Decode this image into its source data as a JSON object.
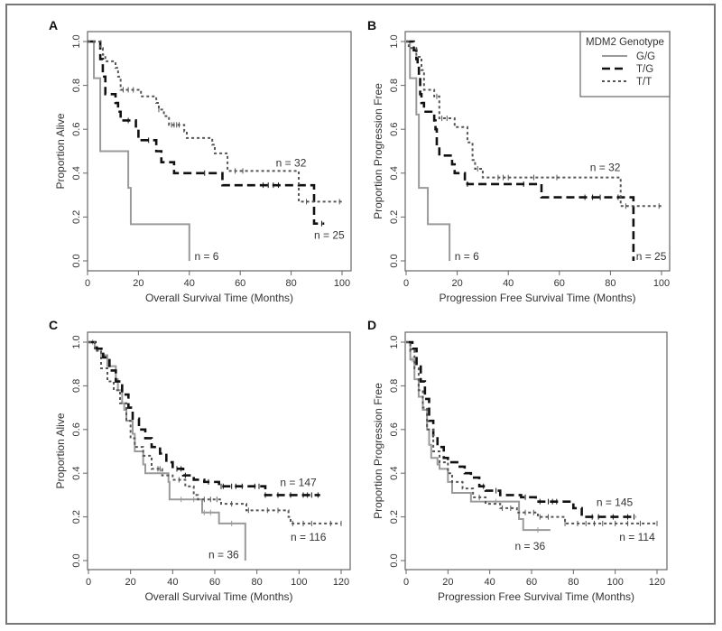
{
  "chart_data": [
    {
      "panel": "A",
      "type": "line",
      "xlabel": "Overall Survival Time (Months)",
      "ylabel": "Proportion Alive",
      "xlim": [
        0,
        100
      ],
      "ylim": [
        0,
        1
      ],
      "xticks": [
        "0",
        "20",
        "40",
        "60",
        "80",
        "100"
      ],
      "xtick_values": [
        0,
        20,
        40,
        60,
        80,
        100
      ],
      "yticks": [
        "0.0",
        "0.2",
        "0.4",
        "0.6",
        "0.8",
        "1.0"
      ],
      "ytick_values": [
        0,
        0.2,
        0.4,
        0.6,
        0.8,
        1.0
      ],
      "series": [
        {
          "name": "G/G",
          "steps": [
            [
              0,
              1
            ],
            [
              2.5,
              0.833
            ],
            [
              5,
              0.5
            ],
            [
              16,
              0.333
            ],
            [
              17,
              0.167
            ],
            [
              40,
              0
            ]
          ],
          "end": 40,
          "censor": []
        },
        {
          "name": "T/G",
          "steps": [
            [
              0,
              1
            ],
            [
              5,
              0.92
            ],
            [
              6,
              0.84
            ],
            [
              7,
              0.76
            ],
            [
              11,
              0.72
            ],
            [
              12,
              0.68
            ],
            [
              13,
              0.64
            ],
            [
              19,
              0.6
            ],
            [
              20,
              0.55
            ],
            [
              27,
              0.5
            ],
            [
              29,
              0.45
            ],
            [
              34,
              0.4
            ],
            [
              53,
              0.345
            ],
            [
              89,
              0.17
            ]
          ],
          "end": 93,
          "censor": [
            16,
            24,
            46,
            69,
            71,
            73,
            75,
            92
          ]
        },
        {
          "name": "T/T",
          "steps": [
            [
              0,
              1
            ],
            [
              5,
              0.97
            ],
            [
              6,
              0.94
            ],
            [
              7,
              0.91
            ],
            [
              11,
              0.88
            ],
            [
              12,
              0.84
            ],
            [
              13,
              0.78
            ],
            [
              21,
              0.75
            ],
            [
              27,
              0.72
            ],
            [
              28,
              0.69
            ],
            [
              30,
              0.66
            ],
            [
              32,
              0.62
            ],
            [
              38,
              0.59
            ],
            [
              39,
              0.56
            ],
            [
              49,
              0.53
            ],
            [
              50,
              0.49
            ],
            [
              55,
              0.41
            ],
            [
              83,
              0.27
            ]
          ],
          "end": 100,
          "censor": [
            14,
            16,
            18,
            28,
            33,
            34,
            35,
            36,
            58,
            61,
            86,
            99
          ]
        }
      ],
      "annotations": [
        {
          "text": "n = 32",
          "x": 74,
          "y": 0.43
        },
        {
          "text": "n = 25",
          "x": 89,
          "y": 0.1
        },
        {
          "text": "n = 6",
          "x": 42,
          "y": 0.005
        }
      ]
    },
    {
      "panel": "B",
      "type": "line",
      "xlabel": "Progression Free Survival Time (Months)",
      "ylabel": "Proportion Progression Free",
      "xlim": [
        0,
        100
      ],
      "ylim": [
        0,
        1
      ],
      "xticks": [
        "0",
        "20",
        "40",
        "60",
        "80",
        "100"
      ],
      "xtick_values": [
        0,
        20,
        40,
        60,
        80,
        100
      ],
      "yticks": [
        "0.0",
        "0.2",
        "0.4",
        "0.6",
        "0.8",
        "1.0"
      ],
      "ytick_values": [
        0,
        0.2,
        0.4,
        0.6,
        0.8,
        1.0
      ],
      "legend": {
        "title": "MDM2 Genotype",
        "entries": [
          "G/G",
          "T/G",
          "T/T"
        ],
        "placement": "top-right"
      },
      "series": [
        {
          "name": "G/G",
          "steps": [
            [
              0,
              1
            ],
            [
              1.5,
              0.833
            ],
            [
              4,
              0.667
            ],
            [
              5,
              0.333
            ],
            [
              8.5,
              0.167
            ],
            [
              17,
              0
            ]
          ],
          "end": 17,
          "censor": []
        },
        {
          "name": "T/G",
          "steps": [
            [
              0,
              1
            ],
            [
              3,
              0.96
            ],
            [
              4,
              0.92
            ],
            [
              4.5,
              0.88
            ],
            [
              5,
              0.84
            ],
            [
              5.5,
              0.76
            ],
            [
              6,
              0.72
            ],
            [
              7,
              0.68
            ],
            [
              11,
              0.64
            ],
            [
              11.5,
              0.6
            ],
            [
              12,
              0.52
            ],
            [
              13,
              0.48
            ],
            [
              18,
              0.44
            ],
            [
              19,
              0.4
            ],
            [
              23,
              0.36
            ],
            [
              24,
              0.35
            ],
            [
              53,
              0.29
            ],
            [
              89,
              0
            ]
          ],
          "end": 89,
          "censor": [
            24,
            46,
            70,
            73,
            76,
            83
          ]
        },
        {
          "name": "T/T",
          "steps": [
            [
              0,
              1
            ],
            [
              1,
              0.97
            ],
            [
              4,
              0.93
            ],
            [
              6,
              0.87
            ],
            [
              7,
              0.78
            ],
            [
              11,
              0.75
            ],
            [
              13,
              0.65
            ],
            [
              19,
              0.61
            ],
            [
              24,
              0.54
            ],
            [
              26,
              0.46
            ],
            [
              27,
              0.42
            ],
            [
              30,
              0.38
            ],
            [
              84,
              0.25
            ]
          ],
          "end": 100,
          "censor": [
            12,
            14,
            16,
            28,
            36,
            38,
            40,
            50,
            59,
            86,
            99
          ]
        }
      ],
      "annotations": [
        {
          "text": "n = 32",
          "x": 72,
          "y": 0.41
        },
        {
          "text": "n = 25",
          "x": 90,
          "y": 0.005
        },
        {
          "text": "n = 6",
          "x": 19,
          "y": 0.005
        }
      ]
    },
    {
      "panel": "C",
      "type": "line",
      "xlabel": "Overall Survival Time (Months)",
      "ylabel": "Proportion Alive",
      "xlim": [
        0,
        120
      ],
      "ylim": [
        0,
        1
      ],
      "xticks": [
        "0",
        "20",
        "40",
        "60",
        "80",
        "100",
        "120"
      ],
      "xtick_values": [
        0,
        20,
        40,
        60,
        80,
        100,
        120
      ],
      "yticks": [
        "0.0",
        "0.2",
        "0.4",
        "0.6",
        "0.8",
        "1.0"
      ],
      "ytick_values": [
        0,
        0.2,
        0.4,
        0.6,
        0.8,
        1.0
      ],
      "series": [
        {
          "name": "G/G",
          "steps": [
            [
              0,
              1
            ],
            [
              3,
              0.97
            ],
            [
              6,
              0.94
            ],
            [
              9,
              0.89
            ],
            [
              13,
              0.83
            ],
            [
              14,
              0.78
            ],
            [
              16,
              0.72
            ],
            [
              17,
              0.69
            ],
            [
              18,
              0.64
            ],
            [
              21,
              0.58
            ],
            [
              22,
              0.5
            ],
            [
              26,
              0.44
            ],
            [
              27,
              0.4
            ],
            [
              38,
              0.36
            ],
            [
              38.5,
              0.28
            ],
            [
              54,
              0.22
            ],
            [
              62,
              0.17
            ],
            [
              74.5,
              0
            ]
          ],
          "end": 74.5,
          "censor": [
            2,
            44,
            50,
            55,
            58,
            68
          ]
        },
        {
          "name": "T/G",
          "steps": [
            [
              0,
              1
            ],
            [
              4,
              0.97
            ],
            [
              7,
              0.93
            ],
            [
              10,
              0.87
            ],
            [
              13,
              0.82
            ],
            [
              16,
              0.76
            ],
            [
              19,
              0.7
            ],
            [
              21,
              0.65
            ],
            [
              24,
              0.6
            ],
            [
              27,
              0.56
            ],
            [
              30,
              0.52
            ],
            [
              34,
              0.49
            ],
            [
              37,
              0.45
            ],
            [
              40,
              0.42
            ],
            [
              45,
              0.39
            ],
            [
              50,
              0.37
            ],
            [
              55,
              0.36
            ],
            [
              62,
              0.34
            ],
            [
              84,
              0.3
            ]
          ],
          "end": 110,
          "censor": [
            42,
            44,
            46,
            57,
            63,
            64,
            68,
            70,
            73,
            79,
            81,
            84,
            90,
            96,
            102,
            104,
            106,
            109
          ]
        },
        {
          "name": "T/T",
          "steps": [
            [
              0,
              1
            ],
            [
              3,
              0.96
            ],
            [
              6,
              0.88
            ],
            [
              9,
              0.82
            ],
            [
              12,
              0.78
            ],
            [
              15,
              0.72
            ],
            [
              18,
              0.64
            ],
            [
              20,
              0.56
            ],
            [
              22,
              0.52
            ],
            [
              26,
              0.48
            ],
            [
              30,
              0.42
            ],
            [
              35,
              0.39
            ],
            [
              40,
              0.37
            ],
            [
              46,
              0.34
            ],
            [
              50,
              0.3
            ],
            [
              52,
              0.28
            ],
            [
              63,
              0.26
            ],
            [
              75,
              0.23
            ],
            [
              95,
              0.2
            ],
            [
              96,
              0.17
            ]
          ],
          "end": 120,
          "censor": [
            33,
            34,
            43,
            55,
            58,
            61,
            68,
            76,
            85,
            90,
            97,
            102,
            106,
            115,
            120
          ]
        }
      ],
      "annotations": [
        {
          "text": "n = 147",
          "x": 91,
          "y": 0.34
        },
        {
          "text": "n = 116",
          "x": 96,
          "y": 0.09
        },
        {
          "text": "n = 36",
          "x": 57,
          "y": 0.01
        }
      ]
    },
    {
      "panel": "D",
      "type": "line",
      "xlabel": "Progression Free Survival Time (Months)",
      "ylabel": "Proportion Progression Free",
      "xlim": [
        0,
        120
      ],
      "ylim": [
        0,
        1
      ],
      "xticks": [
        "0",
        "20",
        "40",
        "60",
        "80",
        "100",
        "120"
      ],
      "xtick_values": [
        0,
        20,
        40,
        60,
        80,
        100,
        120
      ],
      "yticks": [
        "0.0",
        "0.2",
        "0.4",
        "0.6",
        "0.8",
        "1.0"
      ],
      "ytick_values": [
        0,
        0.2,
        0.4,
        0.6,
        0.8,
        1.0
      ],
      "series": [
        {
          "name": "G/G",
          "steps": [
            [
              0,
              1
            ],
            [
              2,
              0.92
            ],
            [
              4,
              0.83
            ],
            [
              6,
              0.75
            ],
            [
              8,
              0.69
            ],
            [
              10,
              0.6
            ],
            [
              11,
              0.53
            ],
            [
              12,
              0.47
            ],
            [
              15,
              0.44
            ],
            [
              16,
              0.42
            ],
            [
              20,
              0.36
            ],
            [
              22,
              0.31
            ],
            [
              31,
              0.27
            ],
            [
              54,
              0.19
            ],
            [
              56,
              0.14
            ]
          ],
          "end": 69,
          "censor": [
            3,
            43,
            63
          ]
        },
        {
          "name": "T/G",
          "steps": [
            [
              0,
              1
            ],
            [
              3,
              0.97
            ],
            [
              5,
              0.9
            ],
            [
              7,
              0.82
            ],
            [
              9,
              0.74
            ],
            [
              11,
              0.64
            ],
            [
              13,
              0.57
            ],
            [
              15,
              0.52
            ],
            [
              18,
              0.47
            ],
            [
              20,
              0.45
            ],
            [
              25,
              0.43
            ],
            [
              28,
              0.4
            ],
            [
              31,
              0.38
            ],
            [
              35,
              0.34
            ],
            [
              38,
              0.32
            ],
            [
              45,
              0.3
            ],
            [
              55,
              0.29
            ],
            [
              62,
              0.27
            ],
            [
              80,
              0.24
            ],
            [
              84,
              0.2
            ]
          ],
          "end": 110,
          "censor": [
            37,
            43,
            57,
            64,
            68,
            70,
            72,
            89,
            92,
            99,
            106,
            109
          ]
        },
        {
          "name": "T/T",
          "steps": [
            [
              0,
              1
            ],
            [
              2,
              0.96
            ],
            [
              4,
              0.88
            ],
            [
              6,
              0.78
            ],
            [
              8,
              0.7
            ],
            [
              10,
              0.6
            ],
            [
              13,
              0.5
            ],
            [
              16,
              0.45
            ],
            [
              20,
              0.4
            ],
            [
              22,
              0.36
            ],
            [
              27,
              0.33
            ],
            [
              32,
              0.29
            ],
            [
              38,
              0.26
            ],
            [
              45,
              0.24
            ],
            [
              53,
              0.22
            ],
            [
              63,
              0.2
            ],
            [
              76,
              0.17
            ]
          ],
          "end": 120,
          "censor": [
            35,
            46,
            50,
            57,
            61,
            64,
            68,
            76,
            82,
            86,
            90,
            94,
            100,
            106,
            112,
            120
          ]
        }
      ],
      "annotations": [
        {
          "text": "n = 145",
          "x": 91,
          "y": 0.25
        },
        {
          "text": "n = 114",
          "x": 102,
          "y": 0.09
        },
        {
          "text": "n = 36",
          "x": 52,
          "y": 0.05
        }
      ]
    }
  ]
}
